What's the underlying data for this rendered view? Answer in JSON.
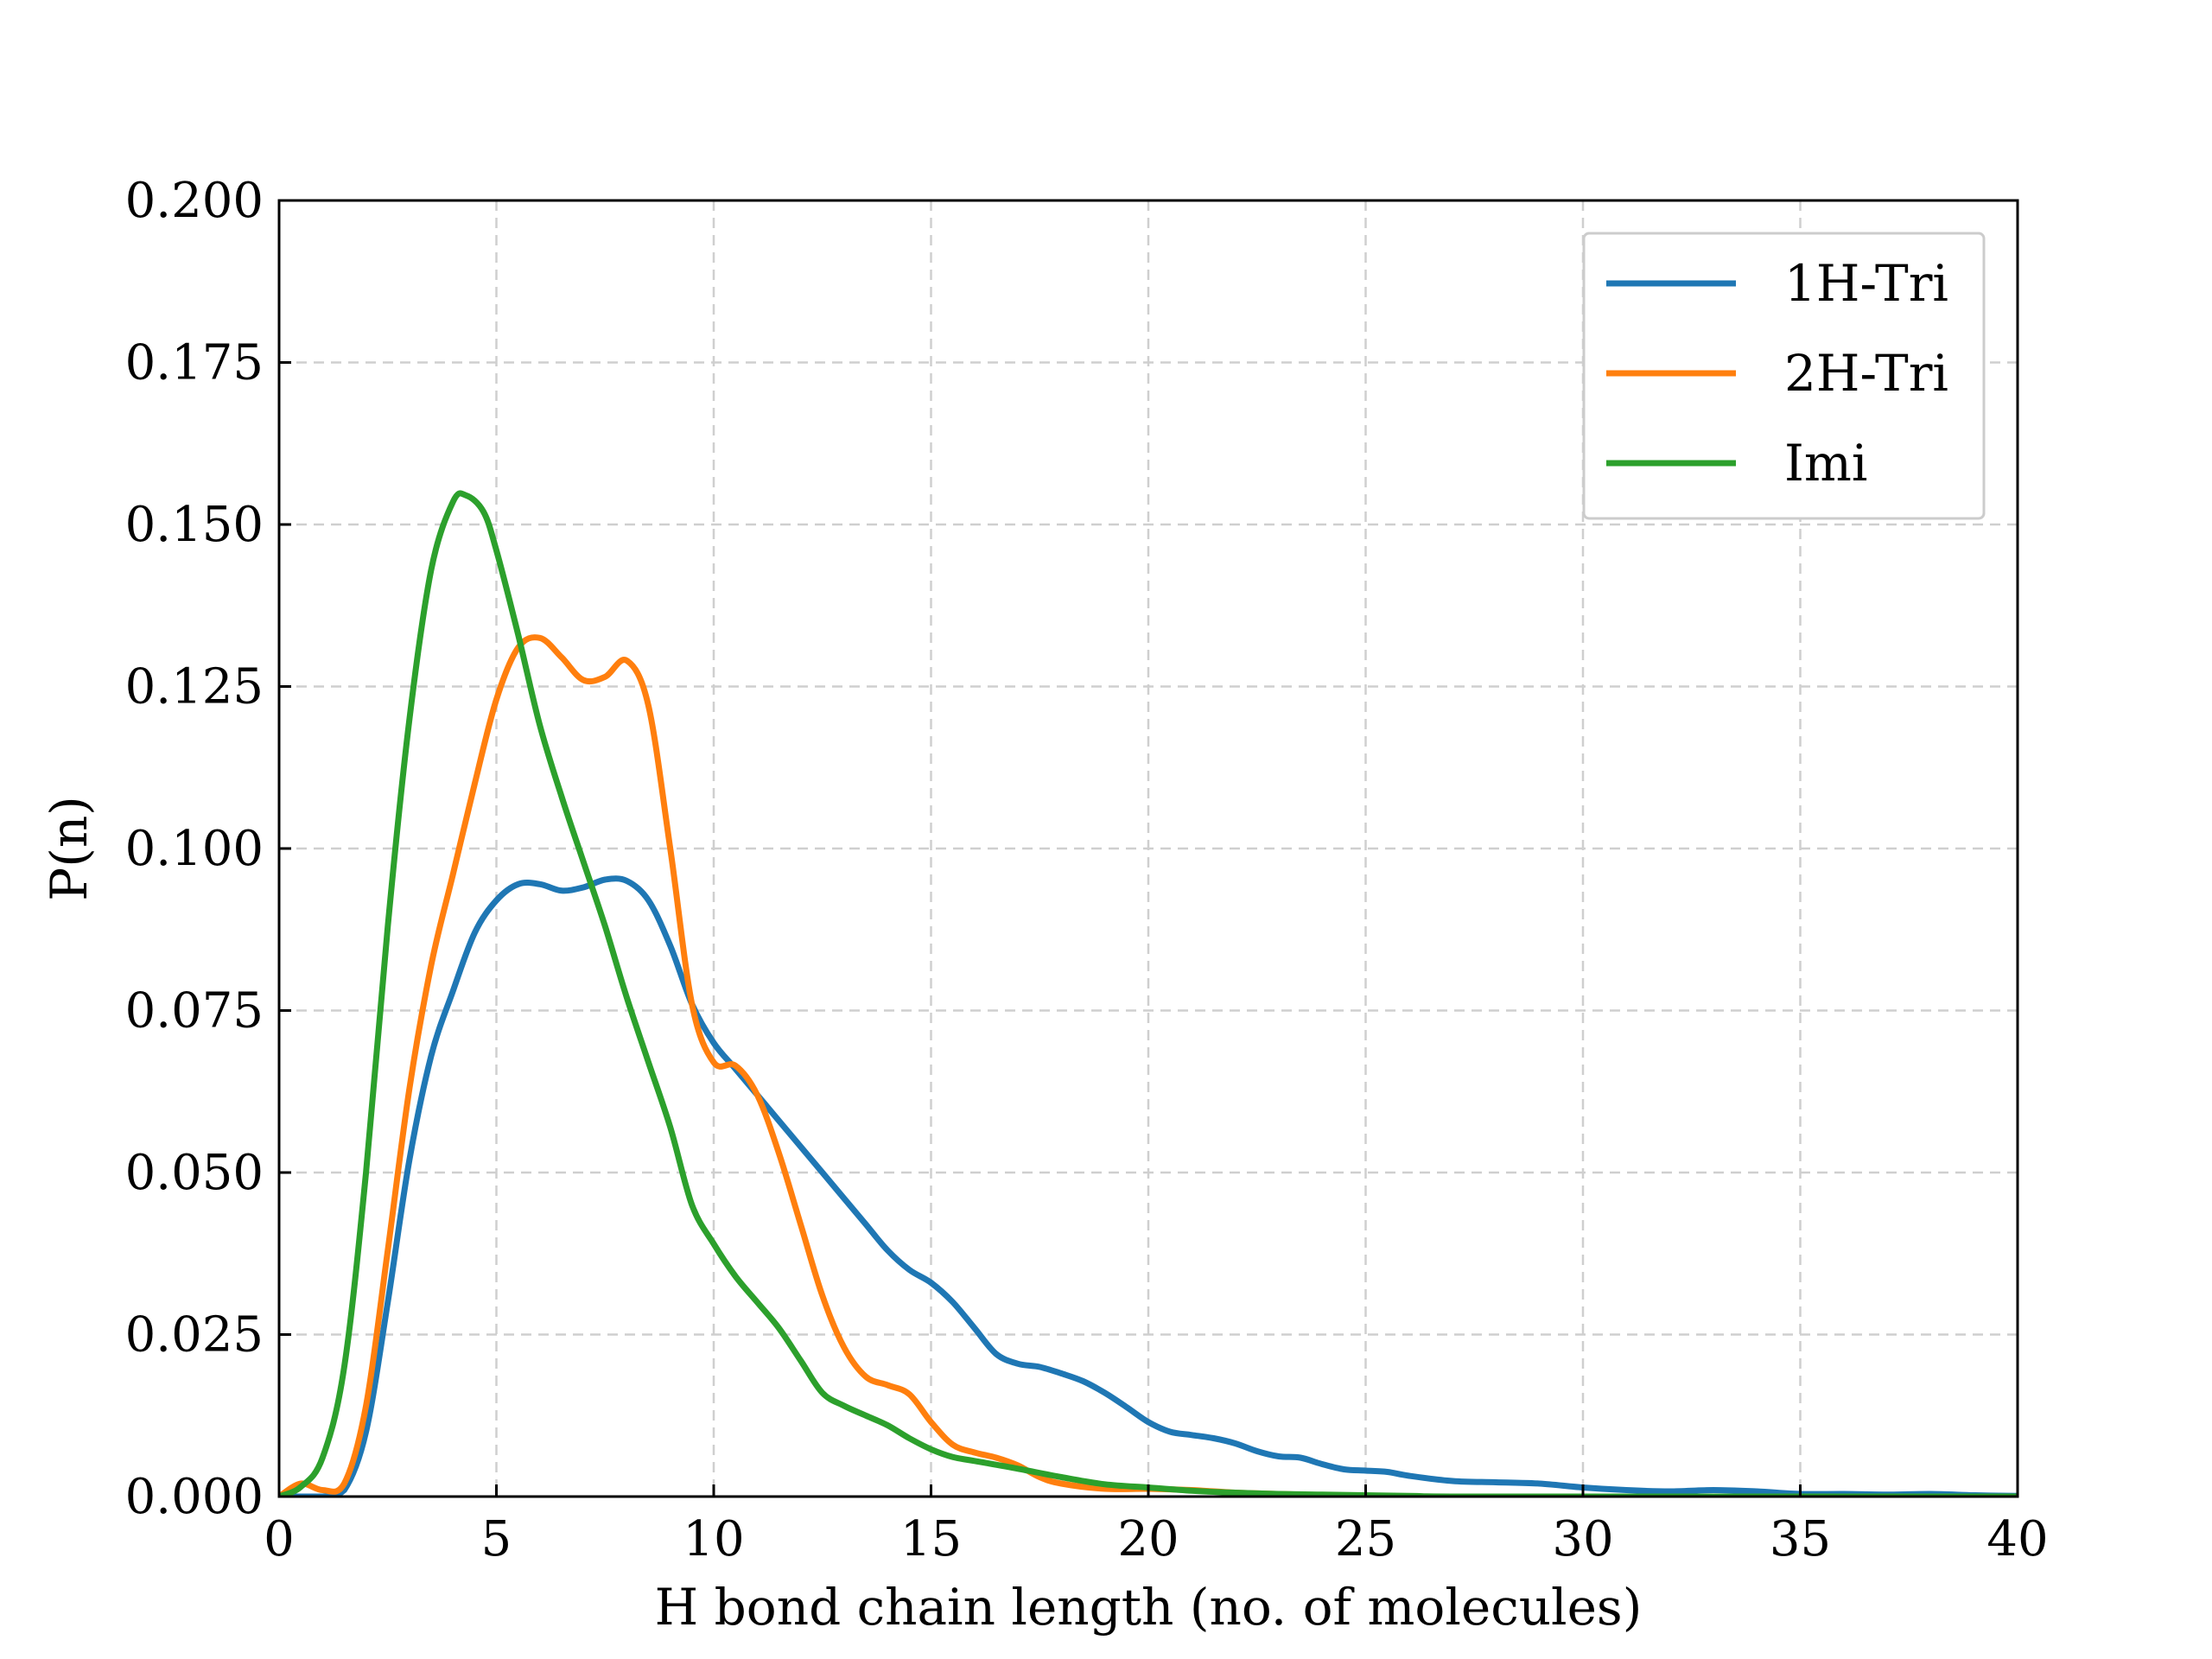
{
  "chart_data": {
    "type": "line",
    "title": "",
    "xlabel": "H bond chain length (no. of molecules)",
    "ylabel": "P(n)",
    "xlim": [
      0,
      40
    ],
    "ylim": [
      0,
      0.2
    ],
    "xticks": [
      0,
      5,
      10,
      15,
      20,
      25,
      30,
      35,
      40
    ],
    "yticks": [
      0,
      0.025,
      0.05,
      0.075,
      0.1,
      0.125,
      0.15,
      0.175,
      0.2
    ],
    "xtick_labels": [
      "0",
      "5",
      "10",
      "15",
      "20",
      "25",
      "30",
      "35",
      "40"
    ],
    "ytick_labels": [
      "0.000",
      "0.025",
      "0.050",
      "0.075",
      "0.100",
      "0.125",
      "0.150",
      "0.175",
      "0.200"
    ],
    "grid": true,
    "legend_position": "upper-right",
    "series": [
      {
        "name": "1H-Tri",
        "color": "#1f77b4",
        "points": [
          [
            0,
            0
          ],
          [
            1,
            0
          ],
          [
            1.5,
            0.001
          ],
          [
            2,
            0.01
          ],
          [
            2.5,
            0.03
          ],
          [
            3,
            0.052
          ],
          [
            3.5,
            0.068
          ],
          [
            4,
            0.078
          ],
          [
            4.5,
            0.087
          ],
          [
            5,
            0.092
          ],
          [
            5.5,
            0.0945
          ],
          [
            6,
            0.0945
          ],
          [
            6.5,
            0.0935
          ],
          [
            7,
            0.094
          ],
          [
            7.5,
            0.0952
          ],
          [
            8,
            0.095
          ],
          [
            8.5,
            0.092
          ],
          [
            9,
            0.085
          ],
          [
            9.5,
            0.076
          ],
          [
            10,
            0.07
          ],
          [
            10.5,
            0.066
          ],
          [
            11,
            0.062
          ],
          [
            11.5,
            0.058
          ],
          [
            12,
            0.054
          ],
          [
            12.5,
            0.05
          ],
          [
            13,
            0.046
          ],
          [
            13.5,
            0.042
          ],
          [
            14,
            0.038
          ],
          [
            14.5,
            0.035
          ],
          [
            15,
            0.033
          ],
          [
            15.5,
            0.03
          ],
          [
            16,
            0.026
          ],
          [
            16.5,
            0.022
          ],
          [
            17,
            0.0205
          ],
          [
            17.5,
            0.02
          ],
          [
            18,
            0.019
          ],
          [
            18.5,
            0.0178
          ],
          [
            19,
            0.016
          ],
          [
            19.5,
            0.0138
          ],
          [
            20,
            0.0115
          ],
          [
            20.5,
            0.01
          ],
          [
            21,
            0.0095
          ],
          [
            21.5,
            0.009
          ],
          [
            22,
            0.0082
          ],
          [
            22.5,
            0.007
          ],
          [
            23,
            0.0062
          ],
          [
            23.5,
            0.006
          ],
          [
            24,
            0.005
          ],
          [
            24.5,
            0.0042
          ],
          [
            25,
            0.004
          ],
          [
            25.5,
            0.0038
          ],
          [
            26,
            0.0032
          ],
          [
            27,
            0.0024
          ],
          [
            28,
            0.0022
          ],
          [
            29,
            0.002
          ],
          [
            30,
            0.0014
          ],
          [
            31,
            0.001
          ],
          [
            32,
            0.0008
          ],
          [
            33,
            0.001
          ],
          [
            34,
            0.0008
          ],
          [
            35,
            0.0004
          ],
          [
            36,
            0.0004
          ],
          [
            37,
            0.0003
          ],
          [
            38,
            0.0004
          ],
          [
            39,
            0.0002
          ],
          [
            40,
            0.0001
          ]
        ]
      },
      {
        "name": "2H-Tri",
        "color": "#ff7f0e",
        "points": [
          [
            0,
            0
          ],
          [
            0.5,
            0.002
          ],
          [
            1,
            0.001
          ],
          [
            1.5,
            0.002
          ],
          [
            2,
            0.014
          ],
          [
            2.5,
            0.038
          ],
          [
            3,
            0.063
          ],
          [
            3.5,
            0.082
          ],
          [
            4,
            0.096
          ],
          [
            4.5,
            0.11
          ],
          [
            5,
            0.123
          ],
          [
            5.5,
            0.131
          ],
          [
            6,
            0.1325
          ],
          [
            6.5,
            0.1295
          ],
          [
            7,
            0.126
          ],
          [
            7.5,
            0.1265
          ],
          [
            8,
            0.129
          ],
          [
            8.5,
            0.122
          ],
          [
            9,
            0.1
          ],
          [
            9.5,
            0.076
          ],
          [
            10,
            0.067
          ],
          [
            10.5,
            0.0665
          ],
          [
            11,
            0.062
          ],
          [
            11.5,
            0.053
          ],
          [
            12,
            0.042
          ],
          [
            12.5,
            0.031
          ],
          [
            13,
            0.023
          ],
          [
            13.5,
            0.0185
          ],
          [
            14,
            0.0172
          ],
          [
            14.5,
            0.0158
          ],
          [
            15,
            0.0115
          ],
          [
            15.5,
            0.008
          ],
          [
            16,
            0.0068
          ],
          [
            16.5,
            0.006
          ],
          [
            17,
            0.0048
          ],
          [
            17.5,
            0.003
          ],
          [
            18,
            0.002
          ],
          [
            19,
            0.0012
          ],
          [
            20,
            0.0012
          ],
          [
            21,
            0.001
          ],
          [
            22,
            0.0006
          ],
          [
            23,
            0.0004
          ],
          [
            24,
            0.0002
          ],
          [
            25,
            0.0001
          ],
          [
            26,
            0
          ],
          [
            40,
            0
          ]
        ]
      },
      {
        "name": "Imi",
        "color": "#2ca02c",
        "points": [
          [
            0,
            0
          ],
          [
            0.5,
            0.0015
          ],
          [
            1,
            0.006
          ],
          [
            1.5,
            0.02
          ],
          [
            2,
            0.05
          ],
          [
            2.5,
            0.088
          ],
          [
            3,
            0.12
          ],
          [
            3.5,
            0.143
          ],
          [
            4,
            0.1535
          ],
          [
            4.3,
            0.1545
          ],
          [
            4.7,
            0.152
          ],
          [
            5,
            0.146
          ],
          [
            5.5,
            0.133
          ],
          [
            6,
            0.119
          ],
          [
            6.5,
            0.108
          ],
          [
            7,
            0.098
          ],
          [
            7.5,
            0.088
          ],
          [
            8,
            0.077
          ],
          [
            8.5,
            0.067
          ],
          [
            9,
            0.057
          ],
          [
            9.5,
            0.045
          ],
          [
            10,
            0.039
          ],
          [
            10.5,
            0.034
          ],
          [
            11,
            0.03
          ],
          [
            11.5,
            0.026
          ],
          [
            12,
            0.021
          ],
          [
            12.5,
            0.016
          ],
          [
            13,
            0.014
          ],
          [
            13.5,
            0.0125
          ],
          [
            14,
            0.011
          ],
          [
            14.5,
            0.009
          ],
          [
            15,
            0.0073
          ],
          [
            15.5,
            0.0061
          ],
          [
            16,
            0.0055
          ],
          [
            17,
            0.0043
          ],
          [
            18,
            0.003
          ],
          [
            19,
            0.0019
          ],
          [
            20,
            0.0014
          ],
          [
            21,
            0.0009
          ],
          [
            22,
            0.0006
          ],
          [
            23,
            0.0004
          ],
          [
            24,
            0.0003
          ],
          [
            26,
            0.0001
          ],
          [
            28,
            0
          ],
          [
            40,
            0
          ]
        ]
      }
    ]
  }
}
